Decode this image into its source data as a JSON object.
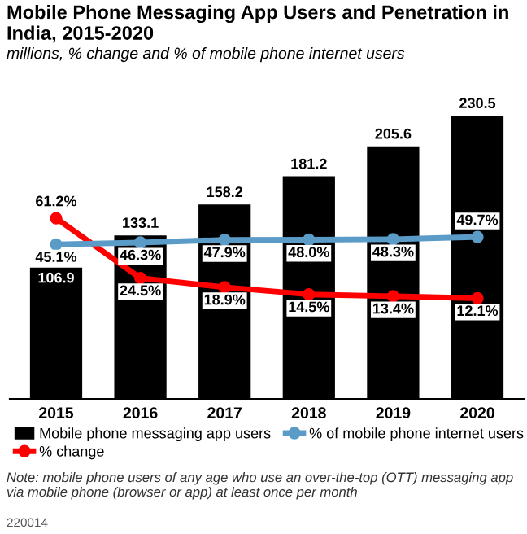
{
  "chart_data": {
    "type": "bar",
    "title": "Mobile Phone Messaging App Users and Penetration in India, 2015-2020",
    "subtitle": "millions, % change and % of mobile phone internet users",
    "categories": [
      "2015",
      "2016",
      "2017",
      "2018",
      "2019",
      "2020"
    ],
    "series": [
      {
        "name": "Mobile phone messaging app users",
        "color": "#000000",
        "values": [
          106.9,
          133.1,
          158.2,
          181.2,
          205.6,
          230.5
        ],
        "value_labels": [
          "106.9",
          "133.1",
          "158.2",
          "181.2",
          "205.6",
          "230.5"
        ]
      },
      {
        "name": "% change",
        "type": "line",
        "axis": "y2",
        "color": "#ff0000",
        "values": [
          61.2,
          24.5,
          18.9,
          14.5,
          13.4,
          12.1
        ],
        "value_labels": [
          "61.2%",
          "24.5%",
          "18.9%",
          "14.5%",
          "13.4%",
          "12.1%"
        ]
      },
      {
        "name": "% of mobile phone internet users",
        "type": "line",
        "axis": "y2",
        "color": "#5b9bc8",
        "values": [
          45.1,
          46.3,
          47.9,
          48.0,
          48.3,
          49.7
        ],
        "value_labels": [
          "45.1%",
          "46.3%",
          "47.9%",
          "48.0%",
          "48.3%",
          "49.7%"
        ]
      }
    ],
    "tick_labels": "x",
    "marker": "circle",
    "line_style": "solid",
    "legend": "bottom",
    "grid": false,
    "annotations": [
      "Note: mobile phone users of any age who use an over-the-top (OTT) messaging app via mobile phone (browser or app) at least once per month",
      "220014"
    ]
  }
}
